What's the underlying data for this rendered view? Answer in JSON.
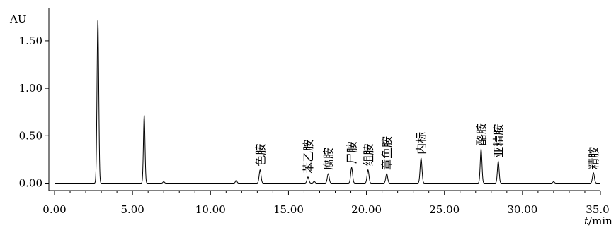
{
  "chart_data": {
    "type": "line",
    "ylabel": "AU",
    "xlabel": "t/min",
    "xlabel_italic_part": "t",
    "xlabel_rest": "/min",
    "xlim": [
      0,
      35
    ],
    "ylim": [
      -0.08,
      1.8
    ],
    "x_ticks": [
      {
        "value": 0,
        "label": "0.00"
      },
      {
        "value": 5,
        "label": "5.00"
      },
      {
        "value": 10,
        "label": "10.00"
      },
      {
        "value": 15,
        "label": "15.00"
      },
      {
        "value": 20,
        "label": "20.00"
      },
      {
        "value": 25,
        "label": "25.00"
      },
      {
        "value": 30,
        "label": "30.00"
      },
      {
        "value": 35,
        "label": "35.0"
      }
    ],
    "y_ticks": [
      {
        "value": 0,
        "label": "0.00"
      },
      {
        "value": 0.5,
        "label": "0.50"
      },
      {
        "value": 1.0,
        "label": "1.00"
      },
      {
        "value": 1.5,
        "label": "1.50"
      }
    ],
    "peaks": [
      {
        "rt": 2.78,
        "height": 1.73,
        "width": 0.055,
        "label": ""
      },
      {
        "rt": 5.75,
        "height": 0.72,
        "width": 0.05,
        "label": ""
      },
      {
        "rt": 7.0,
        "height": 0.015,
        "width": 0.05,
        "label": ""
      },
      {
        "rt": 11.65,
        "height": 0.03,
        "width": 0.05,
        "label": ""
      },
      {
        "rt": 13.18,
        "height": 0.14,
        "width": 0.06,
        "label": "色胺"
      },
      {
        "rt": 16.25,
        "height": 0.065,
        "width": 0.06,
        "label": "苯乙胺"
      },
      {
        "rt": 16.65,
        "height": 0.02,
        "width": 0.05,
        "label": ""
      },
      {
        "rt": 17.55,
        "height": 0.1,
        "width": 0.06,
        "label": "腐胺"
      },
      {
        "rt": 19.05,
        "height": 0.165,
        "width": 0.06,
        "label": "尸胺"
      },
      {
        "rt": 20.1,
        "height": 0.14,
        "width": 0.06,
        "label": "组胺"
      },
      {
        "rt": 21.3,
        "height": 0.1,
        "width": 0.06,
        "label": "章鱼胺"
      },
      {
        "rt": 23.5,
        "height": 0.265,
        "width": 0.06,
        "label": "内标"
      },
      {
        "rt": 27.35,
        "height": 0.36,
        "width": 0.055,
        "label": "酪胺"
      },
      {
        "rt": 28.45,
        "height": 0.23,
        "width": 0.055,
        "label": "亚精胺"
      },
      {
        "rt": 32.0,
        "height": 0.015,
        "width": 0.05,
        "label": ""
      },
      {
        "rt": 34.55,
        "height": 0.11,
        "width": 0.06,
        "label": "精胺"
      }
    ]
  }
}
